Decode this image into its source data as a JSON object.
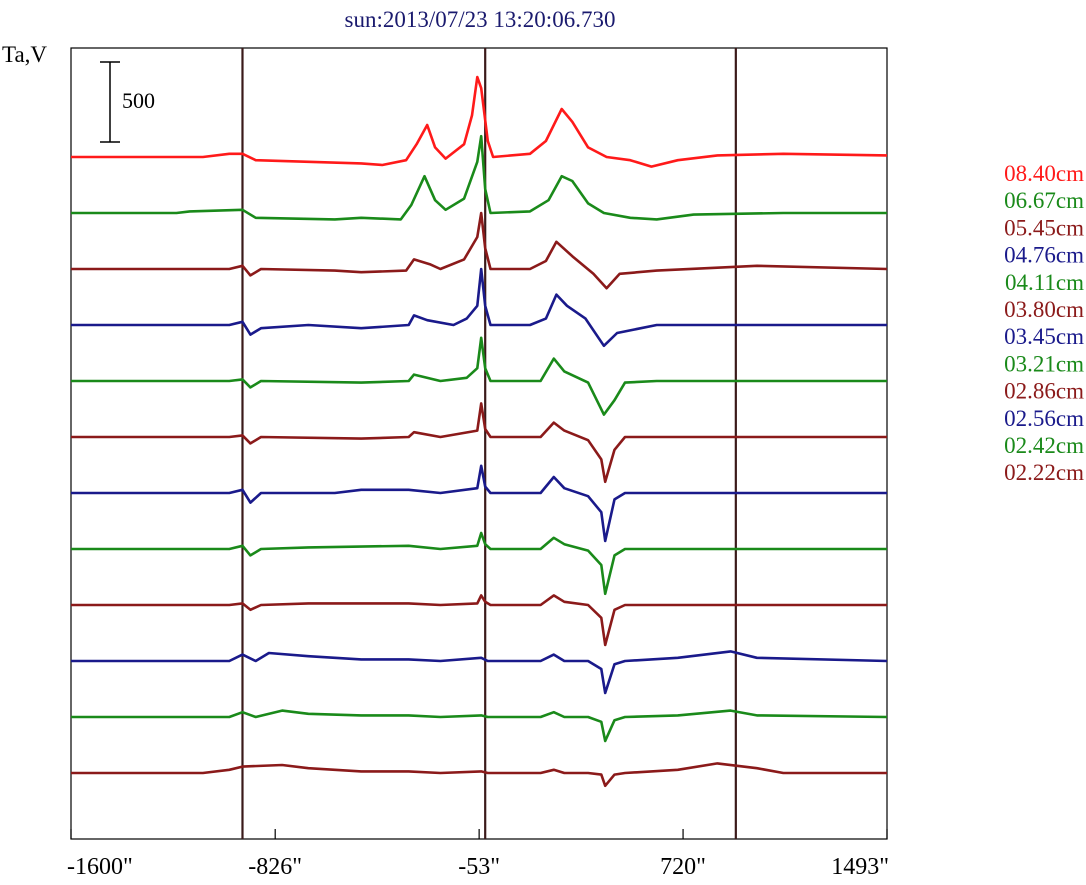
{
  "chart_data": {
    "type": "line",
    "title": "sun:2013/07/23 13:20:06.730",
    "ylabel": "Ta,V",
    "scale_bar_label": "500",
    "scale_bar_value": 500,
    "xlim": [
      -1600,
      1493
    ],
    "x_ticks": [
      -1600,
      -826,
      -53,
      720,
      1493
    ],
    "x_tick_labels": [
      "-1600\"",
      "-826\"",
      "-53\"",
      "720\"",
      "1493\""
    ],
    "vertical_lines_x": [
      -950,
      -30,
      920
    ],
    "legend_position": "right",
    "series": [
      {
        "name": "08.40cm",
        "color": "#ff1a1a",
        "points": [
          [
            -1600,
            0
          ],
          [
            -1100,
            0
          ],
          [
            -1000,
            20
          ],
          [
            -950,
            20
          ],
          [
            -900,
            -20
          ],
          [
            -500,
            -40
          ],
          [
            -420,
            -50
          ],
          [
            -330,
            -20
          ],
          [
            -290,
            80
          ],
          [
            -250,
            200
          ],
          [
            -220,
            60
          ],
          [
            -180,
            -10
          ],
          [
            -110,
            80
          ],
          [
            -80,
            260
          ],
          [
            -60,
            500
          ],
          [
            -45,
            430
          ],
          [
            -20,
            100
          ],
          [
            0,
            0
          ],
          [
            140,
            20
          ],
          [
            200,
            100
          ],
          [
            260,
            300
          ],
          [
            300,
            220
          ],
          [
            360,
            60
          ],
          [
            430,
            0
          ],
          [
            520,
            -20
          ],
          [
            600,
            -60
          ],
          [
            700,
            -20
          ],
          [
            850,
            10
          ],
          [
            1100,
            20
          ],
          [
            1493,
            10
          ]
        ]
      },
      {
        "name": "06.67cm",
        "color": "#1a8a1a",
        "points": [
          [
            -1600,
            0
          ],
          [
            -1200,
            0
          ],
          [
            -1150,
            10
          ],
          [
            -950,
            20
          ],
          [
            -900,
            -30
          ],
          [
            -600,
            -40
          ],
          [
            -500,
            -30
          ],
          [
            -350,
            -40
          ],
          [
            -310,
            50
          ],
          [
            -260,
            230
          ],
          [
            -220,
            80
          ],
          [
            -180,
            20
          ],
          [
            -110,
            90
          ],
          [
            -60,
            320
          ],
          [
            -45,
            480
          ],
          [
            -30,
            150
          ],
          [
            -10,
            0
          ],
          [
            140,
            10
          ],
          [
            210,
            80
          ],
          [
            260,
            230
          ],
          [
            300,
            200
          ],
          [
            360,
            60
          ],
          [
            420,
            0
          ],
          [
            520,
            -30
          ],
          [
            620,
            -40
          ],
          [
            760,
            -10
          ],
          [
            1100,
            0
          ],
          [
            1493,
            0
          ]
        ]
      },
      {
        "name": "05.45cm",
        "color": "#8b1a1a",
        "points": [
          [
            -1600,
            0
          ],
          [
            -1000,
            0
          ],
          [
            -950,
            20
          ],
          [
            -920,
            -40
          ],
          [
            -880,
            0
          ],
          [
            -600,
            -10
          ],
          [
            -500,
            -20
          ],
          [
            -330,
            -10
          ],
          [
            -300,
            60
          ],
          [
            -240,
            30
          ],
          [
            -200,
            0
          ],
          [
            -110,
            60
          ],
          [
            -60,
            200
          ],
          [
            -45,
            350
          ],
          [
            -30,
            130
          ],
          [
            -10,
            0
          ],
          [
            140,
            0
          ],
          [
            200,
            50
          ],
          [
            240,
            170
          ],
          [
            300,
            80
          ],
          [
            380,
            -30
          ],
          [
            430,
            -120
          ],
          [
            480,
            -30
          ],
          [
            620,
            -10
          ],
          [
            1000,
            20
          ],
          [
            1493,
            0
          ]
        ]
      },
      {
        "name": "04.76cm",
        "color": "#1a1a8b",
        "points": [
          [
            -1600,
            0
          ],
          [
            -1000,
            0
          ],
          [
            -950,
            20
          ],
          [
            -920,
            -60
          ],
          [
            -880,
            -20
          ],
          [
            -700,
            0
          ],
          [
            -500,
            -20
          ],
          [
            -320,
            0
          ],
          [
            -300,
            60
          ],
          [
            -250,
            30
          ],
          [
            -150,
            0
          ],
          [
            -100,
            40
          ],
          [
            -60,
            120
          ],
          [
            -45,
            350
          ],
          [
            -30,
            120
          ],
          [
            -10,
            0
          ],
          [
            140,
            0
          ],
          [
            200,
            40
          ],
          [
            240,
            190
          ],
          [
            280,
            120
          ],
          [
            350,
            40
          ],
          [
            420,
            -130
          ],
          [
            470,
            -50
          ],
          [
            620,
            0
          ],
          [
            1493,
            0
          ]
        ]
      },
      {
        "name": "04.11cm",
        "color": "#1a8a1a",
        "points": [
          [
            -1600,
            0
          ],
          [
            -1000,
            0
          ],
          [
            -950,
            10
          ],
          [
            -920,
            -40
          ],
          [
            -880,
            0
          ],
          [
            -500,
            -10
          ],
          [
            -320,
            0
          ],
          [
            -300,
            40
          ],
          [
            -200,
            0
          ],
          [
            -100,
            20
          ],
          [
            -60,
            80
          ],
          [
            -45,
            270
          ],
          [
            -30,
            80
          ],
          [
            -10,
            0
          ],
          [
            180,
            0
          ],
          [
            230,
            140
          ],
          [
            270,
            60
          ],
          [
            360,
            -10
          ],
          [
            420,
            -210
          ],
          [
            460,
            -120
          ],
          [
            500,
            -10
          ],
          [
            620,
            0
          ],
          [
            1493,
            0
          ]
        ]
      },
      {
        "name": "03.80cm",
        "color": "#8b1a1a",
        "points": [
          [
            -1600,
            0
          ],
          [
            -1000,
            0
          ],
          [
            -950,
            10
          ],
          [
            -920,
            -40
          ],
          [
            -880,
            0
          ],
          [
            -500,
            -10
          ],
          [
            -320,
            0
          ],
          [
            -300,
            30
          ],
          [
            -200,
            0
          ],
          [
            -60,
            40
          ],
          [
            -45,
            210
          ],
          [
            -30,
            50
          ],
          [
            -10,
            0
          ],
          [
            180,
            0
          ],
          [
            230,
            90
          ],
          [
            270,
            40
          ],
          [
            360,
            -20
          ],
          [
            410,
            -140
          ],
          [
            425,
            -280
          ],
          [
            460,
            -80
          ],
          [
            500,
            0
          ],
          [
            1493,
            0
          ]
        ]
      },
      {
        "name": "03.45cm",
        "color": "#1a1a8b",
        "points": [
          [
            -1600,
            0
          ],
          [
            -1000,
            0
          ],
          [
            -950,
            20
          ],
          [
            -920,
            -60
          ],
          [
            -880,
            0
          ],
          [
            -600,
            0
          ],
          [
            -500,
            20
          ],
          [
            -320,
            20
          ],
          [
            -200,
            0
          ],
          [
            -60,
            30
          ],
          [
            -45,
            170
          ],
          [
            -30,
            40
          ],
          [
            -10,
            0
          ],
          [
            180,
            0
          ],
          [
            230,
            100
          ],
          [
            270,
            30
          ],
          [
            360,
            -20
          ],
          [
            410,
            -120
          ],
          [
            425,
            -300
          ],
          [
            460,
            -40
          ],
          [
            500,
            0
          ],
          [
            1493,
            0
          ]
        ]
      },
      {
        "name": "03.21cm",
        "color": "#1a8a1a",
        "points": [
          [
            -1600,
            0
          ],
          [
            -1000,
            0
          ],
          [
            -950,
            20
          ],
          [
            -920,
            -40
          ],
          [
            -880,
            0
          ],
          [
            -700,
            10
          ],
          [
            -320,
            20
          ],
          [
            -200,
            0
          ],
          [
            -60,
            20
          ],
          [
            -45,
            100
          ],
          [
            -30,
            30
          ],
          [
            -10,
            0
          ],
          [
            180,
            0
          ],
          [
            230,
            70
          ],
          [
            270,
            30
          ],
          [
            360,
            -10
          ],
          [
            410,
            -100
          ],
          [
            425,
            -280
          ],
          [
            460,
            -40
          ],
          [
            500,
            0
          ],
          [
            1493,
            0
          ]
        ]
      },
      {
        "name": "02.86cm",
        "color": "#8b1a1a",
        "points": [
          [
            -1600,
            0
          ],
          [
            -1000,
            0
          ],
          [
            -950,
            10
          ],
          [
            -920,
            -30
          ],
          [
            -880,
            0
          ],
          [
            -700,
            10
          ],
          [
            -320,
            10
          ],
          [
            -200,
            0
          ],
          [
            -60,
            10
          ],
          [
            -45,
            60
          ],
          [
            -30,
            20
          ],
          [
            -10,
            0
          ],
          [
            180,
            0
          ],
          [
            230,
            60
          ],
          [
            270,
            20
          ],
          [
            360,
            0
          ],
          [
            410,
            -80
          ],
          [
            425,
            -250
          ],
          [
            460,
            -30
          ],
          [
            500,
            0
          ],
          [
            1493,
            0
          ]
        ]
      },
      {
        "name": "02.56cm",
        "color": "#1a1a8b",
        "points": [
          [
            -1600,
            0
          ],
          [
            -1000,
            0
          ],
          [
            -950,
            40
          ],
          [
            -900,
            0
          ],
          [
            -850,
            50
          ],
          [
            -700,
            30
          ],
          [
            -500,
            10
          ],
          [
            -320,
            10
          ],
          [
            -200,
            0
          ],
          [
            -45,
            20
          ],
          [
            -20,
            0
          ],
          [
            180,
            0
          ],
          [
            230,
            40
          ],
          [
            270,
            0
          ],
          [
            360,
            0
          ],
          [
            410,
            -50
          ],
          [
            425,
            -200
          ],
          [
            460,
            -20
          ],
          [
            500,
            0
          ],
          [
            700,
            20
          ],
          [
            900,
            60
          ],
          [
            1000,
            20
          ],
          [
            1493,
            0
          ]
        ]
      },
      {
        "name": "02.42cm",
        "color": "#1a8a1a",
        "points": [
          [
            -1600,
            0
          ],
          [
            -1000,
            0
          ],
          [
            -950,
            30
          ],
          [
            -900,
            0
          ],
          [
            -800,
            40
          ],
          [
            -700,
            20
          ],
          [
            -500,
            10
          ],
          [
            -320,
            10
          ],
          [
            -200,
            0
          ],
          [
            -45,
            10
          ],
          [
            -20,
            0
          ],
          [
            180,
            0
          ],
          [
            230,
            30
          ],
          [
            270,
            0
          ],
          [
            360,
            0
          ],
          [
            410,
            -30
          ],
          [
            425,
            -150
          ],
          [
            460,
            -20
          ],
          [
            500,
            0
          ],
          [
            700,
            10
          ],
          [
            900,
            40
          ],
          [
            1000,
            10
          ],
          [
            1493,
            0
          ]
        ]
      },
      {
        "name": "02.22cm",
        "color": "#8b1a1a",
        "points": [
          [
            -1600,
            0
          ],
          [
            -1100,
            0
          ],
          [
            -1000,
            20
          ],
          [
            -950,
            40
          ],
          [
            -800,
            50
          ],
          [
            -700,
            30
          ],
          [
            -500,
            10
          ],
          [
            -320,
            10
          ],
          [
            -200,
            0
          ],
          [
            -45,
            10
          ],
          [
            -20,
            0
          ],
          [
            180,
            0
          ],
          [
            230,
            20
          ],
          [
            270,
            0
          ],
          [
            360,
            0
          ],
          [
            410,
            -10
          ],
          [
            425,
            -80
          ],
          [
            460,
            -10
          ],
          [
            500,
            0
          ],
          [
            700,
            20
          ],
          [
            850,
            60
          ],
          [
            1000,
            30
          ],
          [
            1100,
            0
          ],
          [
            1493,
            0
          ]
        ]
      }
    ]
  }
}
